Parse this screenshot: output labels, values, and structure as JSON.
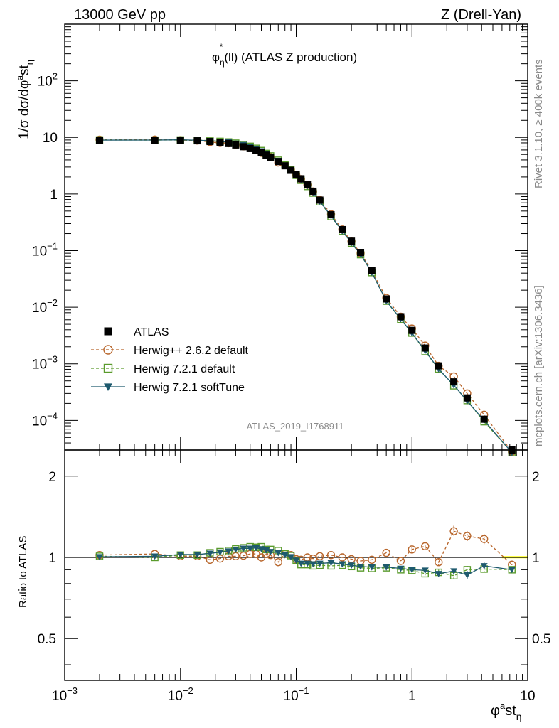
{
  "header": {
    "left": "13000 GeV pp",
    "right": "Z (Drell-Yan)"
  },
  "side": {
    "rivet": "Rivet 3.1.10, ≥ 400k events",
    "mcplots": "mcplots.cern.ch [arXiv:1306.3436]"
  },
  "chart_data": [
    {
      "type": "scatter",
      "title_parts": {
        "phi": "φ",
        "sub": "η",
        "sup": "*",
        "rest": "(ll) (ATLAS Z production)"
      },
      "analysis_label": "ATLAS_2019_I1768911",
      "ylabel_parts": {
        "main": "1/σ dσ/dφ",
        "sup": "a",
        "st": "st",
        "sub": "η"
      },
      "xscale": "log",
      "yscale": "log",
      "xlim": [
        0.001,
        10
      ],
      "ylim": [
        3e-05,
        1000
      ],
      "x_ticks": [
        {
          "value": 0.001,
          "base": "10",
          "exp": "−3"
        },
        {
          "value": 0.01,
          "base": "10",
          "exp": "−2"
        },
        {
          "value": 0.1,
          "base": "10",
          "exp": "−1"
        },
        {
          "value": 1,
          "base": "1",
          "exp": ""
        },
        {
          "value": 10,
          "base": "10",
          "exp": ""
        }
      ],
      "y_ticks": [
        {
          "value": 0.0001,
          "base": "10",
          "exp": "−4"
        },
        {
          "value": 0.001,
          "base": "10",
          "exp": "−3"
        },
        {
          "value": 0.01,
          "base": "10",
          "exp": "−2"
        },
        {
          "value": 0.1,
          "base": "10",
          "exp": "−1"
        },
        {
          "value": 1,
          "base": "1",
          "exp": ""
        },
        {
          "value": 10,
          "base": "10",
          "exp": ""
        },
        {
          "value": 100,
          "base": "10",
          "exp": "2"
        }
      ],
      "legend_position": "lower-left",
      "x": [
        0.002,
        0.006,
        0.01,
        0.014,
        0.018,
        0.022,
        0.026,
        0.03,
        0.035,
        0.04,
        0.045,
        0.05,
        0.055,
        0.06,
        0.07,
        0.08,
        0.09,
        0.1,
        0.11,
        0.125,
        0.14,
        0.16,
        0.2,
        0.25,
        0.3,
        0.36,
        0.45,
        0.6,
        0.8,
        1.0,
        1.3,
        1.7,
        2.3,
        3.0,
        4.2,
        7.3
      ],
      "series": [
        {
          "name": "ATLAS",
          "marker": "square",
          "color": "#000000",
          "values": [
            8.9,
            8.9,
            8.85,
            8.7,
            8.45,
            8.1,
            7.8,
            7.35,
            6.85,
            6.35,
            5.85,
            5.35,
            4.85,
            4.4,
            3.75,
            3.15,
            2.62,
            2.2,
            1.86,
            1.45,
            1.12,
            0.78,
            0.43,
            0.235,
            0.147,
            0.093,
            0.045,
            0.014,
            0.0068,
            0.0039,
            0.0019,
            0.00092,
            0.00048,
            0.00025,
            0.000105,
            3e-05
          ]
        },
        {
          "name": "Herwig++ 2.6.2 default",
          "marker": "circle",
          "color": "#b8662c",
          "dash": true,
          "values": [
            9.1,
            9.15,
            8.95,
            8.8,
            8.3,
            8.0,
            7.9,
            7.45,
            6.95,
            6.55,
            6.0,
            5.35,
            5.0,
            4.5,
            3.6,
            3.25,
            2.68,
            2.17,
            1.83,
            1.45,
            1.11,
            0.79,
            0.44,
            0.236,
            0.145,
            0.09,
            0.044,
            0.0146,
            0.0068,
            0.0042,
            0.0021,
            0.00092,
            0.0006,
            0.0003,
            0.000126,
            2.8e-05
          ]
        },
        {
          "name": "Herwig 7.2.1 default",
          "marker": "open-square",
          "color": "#5a9b2c",
          "dash": true,
          "values": [
            9.0,
            8.95,
            9.0,
            8.9,
            8.8,
            8.5,
            8.3,
            7.9,
            7.45,
            6.95,
            6.4,
            5.85,
            5.2,
            4.7,
            3.95,
            3.25,
            2.66,
            2.14,
            1.75,
            1.36,
            1.04,
            0.73,
            0.4,
            0.22,
            0.136,
            0.085,
            0.041,
            0.0128,
            0.0061,
            0.0035,
            0.00165,
            0.00081,
            0.00041,
            0.000225,
            9.5e-05,
            2.7e-05
          ]
        },
        {
          "name": "Herwig 7.2.1 softTune",
          "marker": "down-triangle",
          "color": "#1e5a6e",
          "values": [
            8.95,
            8.98,
            9.05,
            8.9,
            8.75,
            8.45,
            8.25,
            7.85,
            7.4,
            6.85,
            6.35,
            5.75,
            5.15,
            4.62,
            3.9,
            3.22,
            2.63,
            2.14,
            1.77,
            1.38,
            1.06,
            0.74,
            0.41,
            0.222,
            0.137,
            0.086,
            0.041,
            0.0129,
            0.0062,
            0.0035,
            0.0017,
            0.00081,
            0.00042,
            0.00022,
            0.0001,
            2.7e-05
          ]
        }
      ]
    },
    {
      "type": "scatter",
      "ylabel": "Ratio to ATLAS",
      "xlabel_parts": {
        "phi": "φ",
        "sup": "a",
        "st": "st",
        "sub": "η"
      },
      "xscale": "log",
      "yscale": "log",
      "xlim": [
        0.001,
        10
      ],
      "ylim": [
        0.35,
        2.5
      ],
      "y_ticks": [
        {
          "value": 0.5,
          "label": "0.5"
        },
        {
          "value": 1,
          "label": "1"
        },
        {
          "value": 2,
          "label": "2"
        }
      ],
      "band_color": "#ffff44",
      "x": [
        0.002,
        0.006,
        0.01,
        0.014,
        0.018,
        0.022,
        0.026,
        0.03,
        0.035,
        0.04,
        0.045,
        0.05,
        0.055,
        0.06,
        0.07,
        0.08,
        0.09,
        0.1,
        0.11,
        0.125,
        0.14,
        0.16,
        0.2,
        0.25,
        0.3,
        0.36,
        0.45,
        0.6,
        0.8,
        1.0,
        1.3,
        1.7,
        2.3,
        3.0,
        4.2,
        7.3
      ],
      "series": [
        {
          "name": "Herwig++ 2.6.2 default",
          "marker": "circle",
          "color": "#b8662c",
          "dash": true,
          "values": [
            1.02,
            1.03,
            1.01,
            1.01,
            0.98,
            0.99,
            1.01,
            1.01,
            1.015,
            1.03,
            1.03,
            1.0,
            1.03,
            1.02,
            0.96,
            1.03,
            1.02,
            0.985,
            0.98,
            1.0,
            0.99,
            1.01,
            1.02,
            1.0,
            0.985,
            0.97,
            0.98,
            1.04,
            0.97,
            1.07,
            1.1,
            0.96,
            1.25,
            1.2,
            1.17,
            0.94
          ],
          "err": [
            0,
            0,
            0,
            0,
            0,
            0,
            0,
            0,
            0,
            0,
            0,
            0,
            0,
            0,
            0,
            0,
            0,
            0,
            0,
            0,
            0,
            0,
            0,
            0,
            0,
            0,
            0,
            0.01,
            0.01,
            0.02,
            0.04,
            0.03,
            0.06,
            0.05,
            0.05,
            0.03
          ]
        },
        {
          "name": "Herwig 7.2.1 default",
          "marker": "open-square",
          "color": "#5a9b2c",
          "dash": true,
          "values": [
            1.01,
            1.0,
            1.02,
            1.02,
            1.04,
            1.05,
            1.06,
            1.075,
            1.085,
            1.095,
            1.09,
            1.095,
            1.07,
            1.07,
            1.06,
            1.03,
            1.015,
            0.975,
            0.94,
            0.94,
            0.93,
            0.935,
            0.93,
            0.935,
            0.925,
            0.915,
            0.91,
            0.915,
            0.9,
            0.895,
            0.87,
            0.88,
            0.855,
            0.9,
            0.905,
            0.9
          ],
          "err": [
            0,
            0,
            0,
            0,
            0,
            0,
            0,
            0,
            0,
            0,
            0,
            0,
            0,
            0,
            0,
            0,
            0,
            0,
            0,
            0,
            0,
            0,
            0,
            0,
            0,
            0,
            0,
            0.01,
            0.01,
            0.01,
            0.02,
            0.02,
            0.03,
            0.03,
            0.03,
            0.02
          ]
        },
        {
          "name": "Herwig 7.2.1 softTune",
          "marker": "down-triangle",
          "color": "#1e5a6e",
          "values": [
            1.005,
            1.01,
            1.025,
            1.025,
            1.035,
            1.045,
            1.055,
            1.07,
            1.08,
            1.08,
            1.085,
            1.075,
            1.065,
            1.05,
            1.04,
            1.02,
            1.005,
            0.975,
            0.95,
            0.95,
            0.945,
            0.95,
            0.955,
            0.945,
            0.935,
            0.925,
            0.92,
            0.92,
            0.91,
            0.9,
            0.895,
            0.87,
            0.89,
            0.86,
            0.93,
            0.9
          ],
          "err": [
            0,
            0,
            0,
            0,
            0,
            0,
            0,
            0,
            0,
            0,
            0,
            0,
            0,
            0,
            0,
            0,
            0,
            0,
            0,
            0,
            0,
            0,
            0,
            0,
            0,
            0,
            0,
            0.01,
            0.01,
            0.01,
            0.02,
            0.02,
            0.02,
            0.03,
            0.03,
            0.02
          ]
        }
      ]
    }
  ]
}
